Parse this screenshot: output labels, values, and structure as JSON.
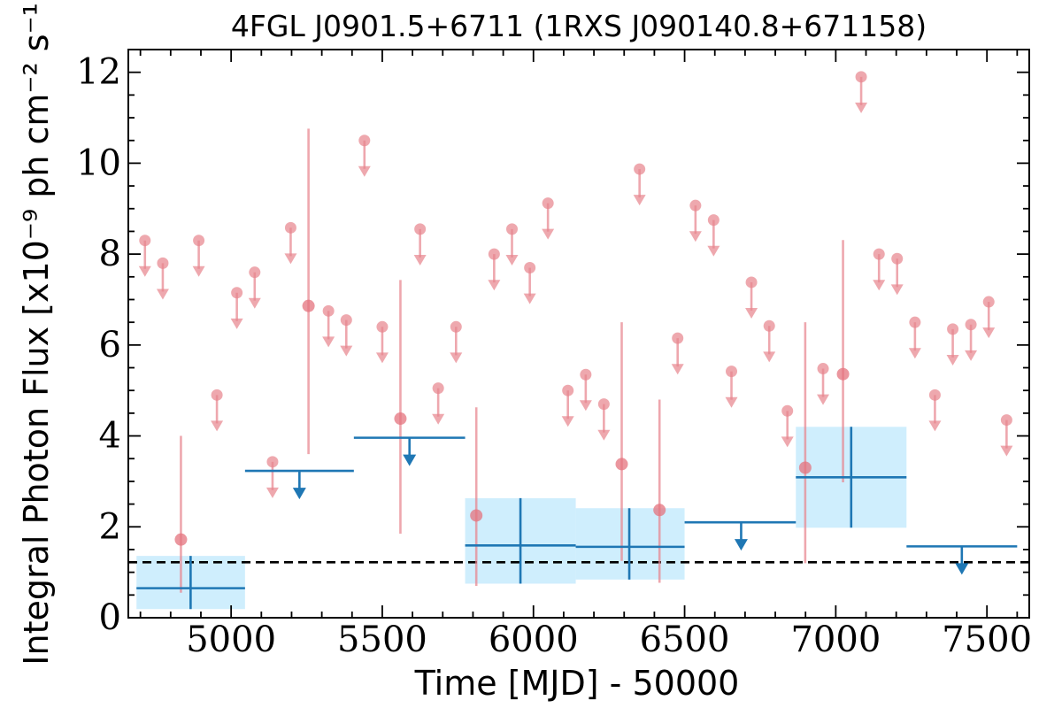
{
  "chart_data": {
    "type": "scatter",
    "title": "4FGL J0901.5+6711 (1RXS J090140.8+671158)",
    "xlabel": "Time [MJD] - 50000",
    "ylabel": "Integral Photon Flux [x10⁻⁹ ph cm⁻² s⁻¹]",
    "xlim": [
      4660,
      7640
    ],
    "ylim": [
      0,
      12.5
    ],
    "xticks": [
      "5000",
      "5500",
      "6000",
      "6500",
      "7000",
      "7500"
    ],
    "yticks": [
      "0",
      "2",
      "4",
      "6",
      "8",
      "10",
      "12"
    ],
    "grid": false,
    "mean_flux": 1.22,
    "colors": {
      "short_bins": "#e8868f",
      "long_bins": "#1f77b4",
      "long_bin_error_band": "#cfeefd",
      "mean_line": "#000000"
    },
    "series": [
      {
        "kind": "short-bin",
        "points": [
          {
            "x": 4715,
            "y": 8.3,
            "upper_limit": true
          },
          {
            "x": 4774,
            "y": 7.8,
            "upper_limit": true
          },
          {
            "x": 4834,
            "y": 1.72,
            "yerr_low": 1.17,
            "yerr_high": 2.28
          },
          {
            "x": 4893,
            "y": 8.3,
            "upper_limit": true
          },
          {
            "x": 4953,
            "y": 4.9,
            "upper_limit": true
          },
          {
            "x": 5019,
            "y": 7.15,
            "upper_limit": true
          },
          {
            "x": 5078,
            "y": 7.6,
            "upper_limit": true
          },
          {
            "x": 5137,
            "y": 3.43,
            "upper_limit": true
          },
          {
            "x": 5197,
            "y": 8.58,
            "upper_limit": true
          },
          {
            "x": 5256,
            "y": 6.86,
            "yerr_low": 3.26,
            "yerr_high": 3.9
          },
          {
            "x": 5322,
            "y": 6.75,
            "upper_limit": true
          },
          {
            "x": 5381,
            "y": 6.55,
            "upper_limit": true
          },
          {
            "x": 5441,
            "y": 10.5,
            "upper_limit": true
          },
          {
            "x": 5500,
            "y": 6.4,
            "upper_limit": true
          },
          {
            "x": 5560,
            "y": 4.38,
            "yerr_low": 2.53,
            "yerr_high": 3.05
          },
          {
            "x": 5625,
            "y": 8.55,
            "upper_limit": true
          },
          {
            "x": 5685,
            "y": 5.05,
            "upper_limit": true
          },
          {
            "x": 5744,
            "y": 6.4,
            "upper_limit": true
          },
          {
            "x": 5811,
            "y": 2.25,
            "yerr_low": 1.55,
            "yerr_high": 2.38
          },
          {
            "x": 5870,
            "y": 8.0,
            "upper_limit": true
          },
          {
            "x": 5929,
            "y": 8.55,
            "upper_limit": true
          },
          {
            "x": 5988,
            "y": 7.7,
            "upper_limit": true
          },
          {
            "x": 6048,
            "y": 9.12,
            "upper_limit": true
          },
          {
            "x": 6114,
            "y": 5.0,
            "upper_limit": true
          },
          {
            "x": 6173,
            "y": 5.35,
            "upper_limit": true
          },
          {
            "x": 6233,
            "y": 4.7,
            "upper_limit": true
          },
          {
            "x": 6292,
            "y": 3.38,
            "yerr_low": 2.13,
            "yerr_high": 3.12
          },
          {
            "x": 6351,
            "y": 9.87,
            "upper_limit": true
          },
          {
            "x": 6417,
            "y": 2.37,
            "yerr_low": 1.6,
            "yerr_high": 2.43
          },
          {
            "x": 6477,
            "y": 6.15,
            "upper_limit": true
          },
          {
            "x": 6536,
            "y": 9.07,
            "upper_limit": true
          },
          {
            "x": 6596,
            "y": 8.75,
            "upper_limit": true
          },
          {
            "x": 6655,
            "y": 5.42,
            "upper_limit": true
          },
          {
            "x": 6721,
            "y": 7.38,
            "upper_limit": true
          },
          {
            "x": 6780,
            "y": 6.42,
            "upper_limit": true
          },
          {
            "x": 6840,
            "y": 4.55,
            "upper_limit": true
          },
          {
            "x": 6899,
            "y": 3.3,
            "yerr_low": 2.1,
            "yerr_high": 3.2
          },
          {
            "x": 6958,
            "y": 5.48,
            "upper_limit": true
          },
          {
            "x": 7024,
            "y": 5.36,
            "yerr_low": 2.38,
            "yerr_high": 2.95
          },
          {
            "x": 7084,
            "y": 11.9,
            "upper_limit": true
          },
          {
            "x": 7143,
            "y": 8.0,
            "upper_limit": true
          },
          {
            "x": 7203,
            "y": 7.9,
            "upper_limit": true
          },
          {
            "x": 7262,
            "y": 6.5,
            "upper_limit": true
          },
          {
            "x": 7328,
            "y": 4.9,
            "upper_limit": true
          },
          {
            "x": 7387,
            "y": 6.35,
            "upper_limit": true
          },
          {
            "x": 7447,
            "y": 6.45,
            "upper_limit": true
          },
          {
            "x": 7506,
            "y": 6.95,
            "upper_limit": true
          },
          {
            "x": 7565,
            "y": 4.35,
            "upper_limit": true
          }
        ]
      },
      {
        "kind": "long-bin",
        "points": [
          {
            "x": 4866,
            "x_start": 4687,
            "x_end": 5046,
            "y": 0.65,
            "y_low": 0.19,
            "y_high": 1.36,
            "upper_limit": false
          },
          {
            "x": 5226,
            "x_start": 5046,
            "x_end": 5406,
            "y": 3.23,
            "upper_limit": true
          },
          {
            "x": 5590,
            "x_start": 5406,
            "x_end": 5774,
            "y": 3.96,
            "upper_limit": true
          },
          {
            "x": 5957,
            "x_start": 5774,
            "x_end": 6140,
            "y": 1.59,
            "y_low": 0.75,
            "y_high": 2.63,
            "upper_limit": false
          },
          {
            "x": 6317,
            "x_start": 6140,
            "x_end": 6500,
            "y": 1.56,
            "y_low": 0.84,
            "y_high": 2.41,
            "upper_limit": false
          },
          {
            "x": 6687,
            "x_start": 6500,
            "x_end": 6868,
            "y": 2.1,
            "upper_limit": true
          },
          {
            "x": 7051,
            "x_start": 6868,
            "x_end": 7234,
            "y": 3.09,
            "y_low": 1.98,
            "y_high": 4.2,
            "upper_limit": false
          },
          {
            "x": 7417,
            "x_start": 7234,
            "x_end": 7600,
            "y": 1.57,
            "upper_limit": true
          }
        ]
      }
    ]
  }
}
